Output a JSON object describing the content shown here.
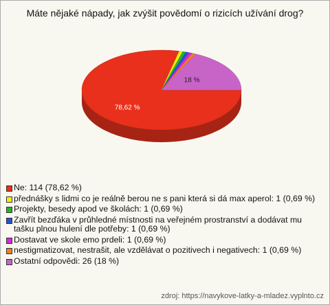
{
  "chart_data": {
    "type": "pie",
    "title": "Máte nějaké nápady, jak zvýšit povědomí o rizicích užívání drog?",
    "legend": [
      "Ne: 114 (78,62 %)",
      "přednášky s lidmi co je reálně berou ne s pani která si dá max aperol: 1 (0,69 %)",
      "Projekty, besedy apod ve školách: 1 (0,69 %)",
      "Zavřít bezďáka v průhledné místnosti na veřejném prostranství a dodávat mu tašku plnou hulení dle potřeby: 1 (0,69 %)",
      "Dostavat ve skole emo prdeli: 1 (0,69 %)",
      "nestigmatizovat, nestrašit, ale vzdělávat o pozitivech i negativech: 1 (0,69 %)",
      "Ostatní odpovědi: 26 (18 %)"
    ],
    "values": [
      78.62,
      0.69,
      0.69,
      0.69,
      0.69,
      0.69,
      18
    ],
    "value_labels": [
      "78,62 %",
      null,
      null,
      null,
      null,
      null,
      "18 %"
    ],
    "colors": [
      "#e8301c",
      "#f4f000",
      "#28b428",
      "#2850d8",
      "#d828d8",
      "#f08020",
      "#c864c8"
    ],
    "source": "zdroj: https://navykove-latky-a-mladez.vyplnto.cz"
  }
}
